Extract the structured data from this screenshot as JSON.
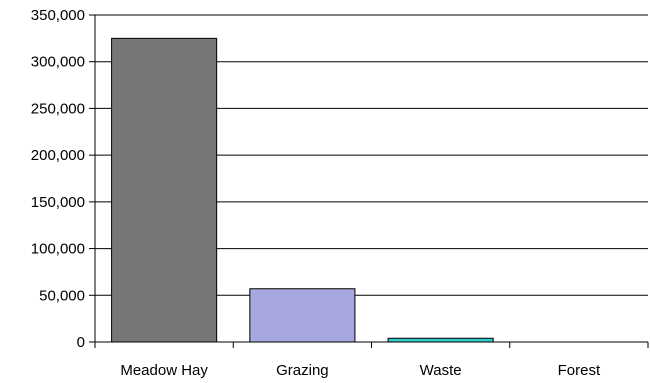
{
  "chart_data": {
    "type": "bar",
    "title": "",
    "xlabel": "",
    "ylabel": "",
    "categories": [
      "Meadow Hay",
      "Grazing",
      "Waste",
      "Forest"
    ],
    "values": [
      325000,
      57000,
      4000,
      0
    ],
    "ylim": [
      0,
      350000
    ],
    "yticks": [
      0,
      50000,
      100000,
      150000,
      200000,
      250000,
      300000,
      350000
    ],
    "ytick_labels": [
      "0",
      "50,000",
      "100,000",
      "150,000",
      "200,000",
      "250,000",
      "300,000",
      "350,000"
    ],
    "grid": "horizontal",
    "legend": "none",
    "bar_colors": [
      "#777777",
      "#a7a7df",
      "#33cccc",
      "#777777"
    ]
  }
}
